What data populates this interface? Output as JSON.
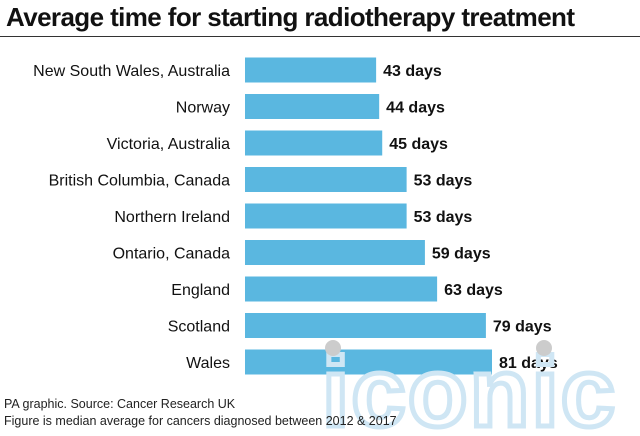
{
  "chart_data": {
    "type": "bar",
    "orientation": "horizontal",
    "title": "Average time for starting radiotherapy treatment",
    "categories": [
      "New South Wales, Australia",
      "Norway",
      "Victoria, Australia",
      "British Columbia, Canada",
      "Northern Ireland",
      "Ontario, Canada",
      "England",
      "Scotland",
      "Wales"
    ],
    "values": [
      43,
      44,
      45,
      53,
      53,
      59,
      63,
      79,
      81
    ],
    "value_labels": [
      "43 days",
      "44 days",
      "45 days",
      "53 days",
      "53 days",
      "59 days",
      "63 days",
      "79 days",
      "81 days"
    ],
    "xlim": [
      0,
      81
    ],
    "grid": false,
    "legend": "none",
    "bar_color": "#5ab7e0"
  },
  "footer": {
    "source": "PA graphic. Source: Cancer Research UK",
    "note": "Figure is median average for cancers diagnosed between 2012 & 2017"
  },
  "watermark": {
    "text": "iconic",
    "color": "#cfe6f4",
    "dot_color": "#cccccc"
  }
}
